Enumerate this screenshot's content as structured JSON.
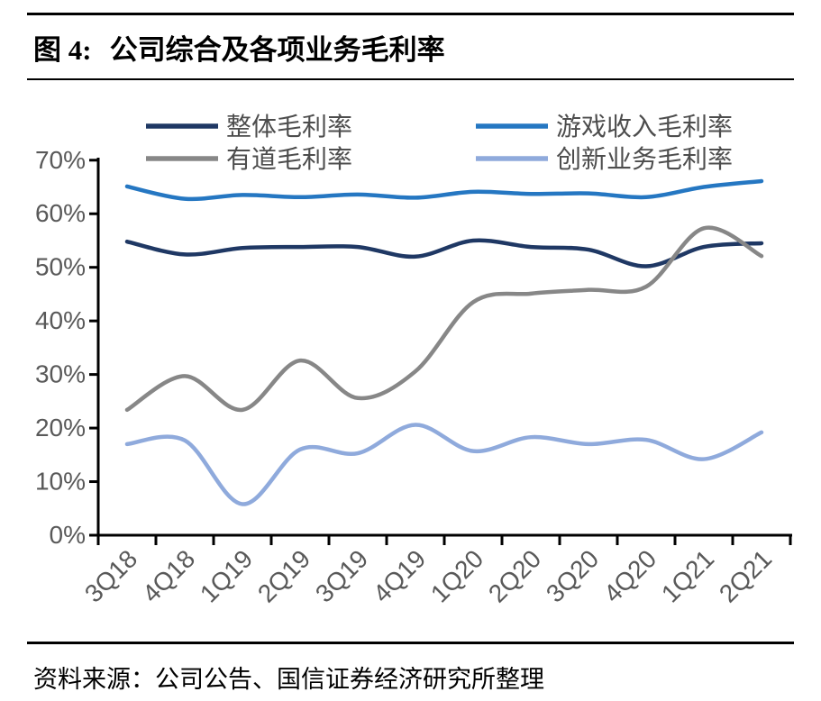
{
  "figure": {
    "label": "图 4:",
    "title": "公司综合及各项业务毛利率"
  },
  "footer": {
    "source": "资料来源：公司公告、国信证券经济研究所整理"
  },
  "colors": {
    "axis": "#000000",
    "tick_label": "#595959",
    "legend_text": "#4d4d4d",
    "overall": "#1F3864",
    "game": "#2577C2",
    "youdao": "#878787",
    "innovation": "#8FAADC"
  },
  "chart_data": {
    "type": "line",
    "smooth": true,
    "grid": false,
    "legend_position": "top",
    "ylim": [
      0,
      70
    ],
    "y_ticks": [
      "0%",
      "10%",
      "20%",
      "30%",
      "40%",
      "50%",
      "60%",
      "70%"
    ],
    "categories": [
      "3Q18",
      "4Q18",
      "1Q19",
      "2Q19",
      "3Q19",
      "4Q19",
      "1Q20",
      "2Q20",
      "3Q20",
      "4Q20",
      "1Q21",
      "2Q21"
    ],
    "series": [
      {
        "name": "整体毛利率",
        "color": "#1F3864",
        "values": [
          54.8,
          52.4,
          53.6,
          53.8,
          53.8,
          52.0,
          55.0,
          53.8,
          53.3,
          50.2,
          53.8,
          54.5
        ]
      },
      {
        "name": "游戏收入毛利率",
        "color": "#2577C2",
        "values": [
          65.1,
          62.8,
          63.5,
          63.1,
          63.6,
          63.0,
          64.1,
          63.7,
          63.8,
          63.1,
          65.0,
          66.1
        ]
      },
      {
        "name": "有道毛利率",
        "color": "#878787",
        "values": [
          23.4,
          29.7,
          23.4,
          32.6,
          25.6,
          30.6,
          43.5,
          45.1,
          45.8,
          46.4,
          57.3,
          52.1
        ]
      },
      {
        "name": "创新业务毛利率",
        "color": "#8FAADC",
        "values": [
          17.0,
          17.7,
          5.8,
          16.0,
          15.3,
          20.6,
          15.7,
          18.3,
          17.0,
          17.8,
          14.2,
          19.2
        ]
      }
    ]
  }
}
